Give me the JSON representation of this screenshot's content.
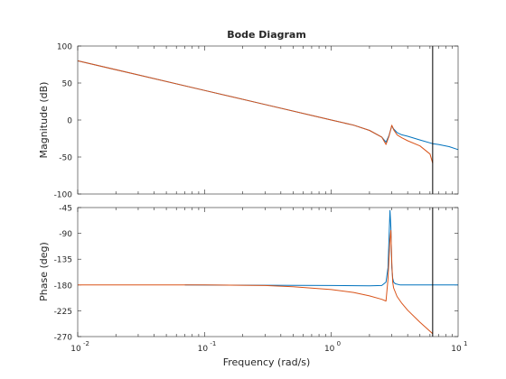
{
  "chart_data": {
    "type": "line",
    "title": "Bode Diagram",
    "xlabel": "Frequency  (rad/s)",
    "x_scale": "log",
    "xlim": [
      0.01,
      10
    ],
    "x_ticks": [
      {
        "base": "10",
        "exp": "-2"
      },
      {
        "base": "10",
        "exp": "-1"
      },
      {
        "base": "10",
        "exp": "0"
      },
      {
        "base": "10",
        "exp": "1"
      }
    ],
    "vline_x": 6.3,
    "colors": {
      "series_a": "#0072BD",
      "series_b": "#D95319",
      "vline": "#000000",
      "axes": "#262626",
      "grid": "#e6e6e6"
    },
    "magnitude": {
      "ylabel": "Magnitude (dB)",
      "ylim": [
        -100,
        100
      ],
      "y_ticks": [
        "100",
        "50",
        "0",
        "-50",
        "-100"
      ],
      "series": [
        {
          "x": [
            0.01,
            0.03,
            0.1,
            0.3,
            1.0,
            1.5,
            2.0,
            2.5,
            2.7,
            2.85,
            3.0,
            3.1,
            3.3,
            3.6,
            4.0,
            5.0,
            6.3,
            7.0,
            8.5,
            10.0
          ],
          "y": [
            80,
            61,
            40,
            21,
            0,
            -7,
            -14,
            -23,
            -30,
            -21,
            -8,
            -12,
            -17,
            -20,
            -22,
            -27,
            -32,
            -33,
            -36,
            -40
          ]
        },
        {
          "x": [
            0.01,
            0.03,
            0.1,
            0.3,
            1.0,
            1.5,
            2.0,
            2.5,
            2.7,
            2.85,
            3.0,
            3.1,
            3.3,
            3.6,
            4.0,
            5.0,
            6.0,
            6.3
          ],
          "y": [
            80,
            61,
            40,
            21,
            0,
            -7,
            -14,
            -23,
            -33,
            -22,
            -7,
            -13,
            -20,
            -24,
            -28,
            -35,
            -46,
            -58
          ]
        }
      ]
    },
    "phase": {
      "ylabel": "Phase (deg)",
      "ylim": [
        -270,
        -45
      ],
      "y_ticks": [
        "-45",
        "-90",
        "-135",
        "-180",
        "-225",
        "-270"
      ],
      "series": [
        {
          "x": [
            0.07,
            0.3,
            1.0,
            2.0,
            2.5,
            2.7,
            2.8,
            2.85,
            2.9,
            2.95,
            3.0,
            3.05,
            3.1,
            3.2,
            3.5,
            4.0,
            6.3,
            10.0
          ],
          "y": [
            -180,
            -180.5,
            -181,
            -181.5,
            -181,
            -175,
            -150,
            -100,
            -50,
            -80,
            -150,
            -168,
            -175,
            -178,
            -180,
            -180,
            -180,
            -180
          ]
        },
        {
          "x": [
            0.01,
            0.1,
            0.3,
            0.5,
            1.0,
            1.5,
            2.0,
            2.5,
            2.7,
            2.8,
            2.9,
            2.95,
            3.0,
            3.05,
            3.1,
            3.3,
            3.6,
            4.0,
            5.0,
            6.3
          ],
          "y": [
            -180,
            -180,
            -181,
            -183,
            -188,
            -193,
            -199,
            -205,
            -208,
            -170,
            -100,
            -85,
            -140,
            -175,
            -185,
            -200,
            -212,
            -224,
            -245,
            -265
          ]
        }
      ]
    }
  }
}
